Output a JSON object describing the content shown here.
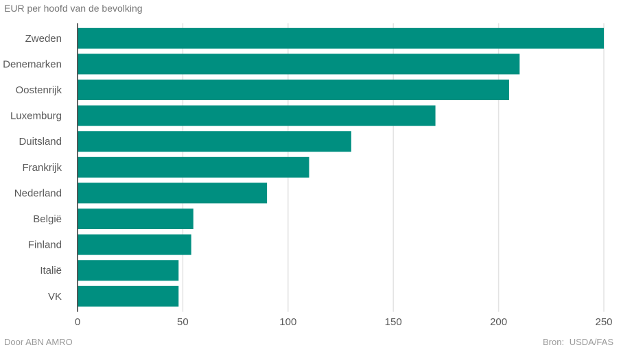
{
  "subtitle": "EUR per hoofd van de bevolking",
  "footer": {
    "credit": "Door ABN AMRO",
    "source_label": "Bron:",
    "source_value": "USDA/FAS"
  },
  "colors": {
    "bar": "#008f80",
    "grid": "#e3e3e3",
    "axis": "#333333"
  },
  "chart_data": {
    "type": "bar",
    "orientation": "horizontal",
    "title": "",
    "ylabel": "EUR per hoofd van de bevolking",
    "xlabel": "",
    "categories": [
      "Zweden",
      "Denemarken",
      "Oostenrijk",
      "Luxemburg",
      "Duitsland",
      "Frankrijk",
      "Nederland",
      "België",
      "Finland",
      "Italië",
      "VK"
    ],
    "values": [
      250,
      210,
      205,
      170,
      130,
      110,
      90,
      55,
      54,
      48,
      48
    ],
    "xlim": [
      0,
      250
    ],
    "ticks": [
      0,
      50,
      100,
      150,
      200,
      250
    ],
    "grid": true
  }
}
